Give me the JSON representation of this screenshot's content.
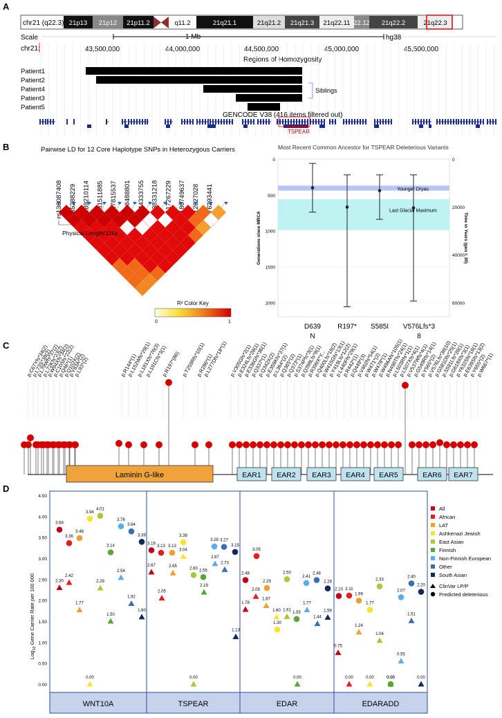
{
  "panel_a": {
    "letter": "A",
    "chrom_label": "chr21 (q22.3)",
    "bands": [
      "21p13",
      "21p12",
      "21p11.2",
      "q11.2",
      "21q21.1",
      "21q21.2",
      "21q21.3",
      "21q22.11",
      "22.12",
      "21q22.2",
      "21q22.3"
    ],
    "scale_label": "Scale",
    "scale_value": "1 Mb",
    "assembly": "hg38",
    "chr_label": "chr21:",
    "positions": [
      "43,500,000",
      "44,000,000",
      "44,500,000",
      "45,000,000",
      "45,500,000"
    ],
    "roh_title": "Regions of Homozygosity",
    "patients": [
      "Patient1",
      "Patient2",
      "Patient4",
      "Patient3",
      "Patient5"
    ],
    "siblings_label": "Siblings",
    "gencode_label": "GENCODE V38 (416 items filtered out)",
    "tspear_label": "TSPEAR"
  },
  "panel_b": {
    "letter": "B",
    "ld_title": "Pairwise LD for 12 Core Haplotype SNPs in Heterozygous Carriers",
    "snps": [
      "rs136087408",
      "rs35288229",
      "rs189210114",
      "rs531511885",
      "rs117815537",
      "rs138488801",
      "rs144333755",
      "rs138331218",
      "rs117267229",
      "rs186749637",
      "rs12627028",
      "rs76293441"
    ],
    "physical_length": "Physical Length:11kb",
    "color_key_title": "R² Color Key",
    "color_key_min": "0",
    "color_key_max": "1",
    "mrca_title": "Most Recent Common Ancestor for TSPEAR Deleterious Variants",
    "ylabel_left": "Generations since MRCA",
    "ylabel_right": "Time in Years (gen = 30)",
    "left_ticks": [
      "0",
      "500",
      "1000",
      "1500",
      "2000"
    ],
    "right_ticks": [
      "0",
      "20000",
      "40000",
      "60000"
    ],
    "younger_dryas": "Younger Dryas",
    "lgm": "Last Glacial Maximum",
    "variant_labels": [
      [
        "D639",
        "N"
      ],
      [
        "R197*"
      ],
      [
        "S585I"
      ],
      [
        "V576Lfs*3",
        "8"
      ]
    ]
  },
  "panel_c": {
    "letter": "C",
    "variants_left": [
      "p.C67Yfs*34(2)",
      "p.L73S*38(2)",
      "p.L79Wfs*37(2)",
      "p.L72Kfs*23(2)",
      "p.W94Xfs*34(2)",
      "p.C10Sfs*22(2)",
      "p.Q46*(1)",
      "p.Q102X(2)",
      "p.Y83A*(2)",
      "p.L93*(2)"
    ],
    "variants_mid": [
      "p.R144*(1)",
      "p.L152Wfs*29(1)",
      "p.L181Xfs*76(3)",
      "p.L191Cfs*3(1)",
      "p.R197*(86)",
      "p.T259Rfs*10(1)",
      "p.R286*(1)",
      "p.L277Dfs*18*(1)"
    ],
    "variants_right": [
      "p.V305Gfs*2(1)",
      "p.E324Lfs*28(1)",
      "p.E336Gfs*36(1)",
      "p.Q337*(1)",
      "p.Q342X(2)",
      "p.E359Kfs*37(1)",
      "p.L364*(2)",
      "p.Q365*(2)",
      "p.Q373*(1)",
      "p.S374Pfs*3(1)",
      "p.Q398Lfs*8(1)",
      "p.R399X*Y...",
      "p.Q400Lfs*18(2)",
      "p.W415Gfs*13(1)",
      "p.Y419Lfs*12(2)",
      "p.L440Ffs*29(1)",
      "p.R442*(1)",
      "p.Q449*(3)",
      "p.V462fs*54(1)",
      "p.W471*(2)",
      "p.W478*(1)",
      "p.W496Afs*105(1)",
      "p.N498Tfs*24(1)",
      "p.L503Rfs*1(1)",
      "p.L507Xfs*4(1)",
      "p.V537Wfs*4(1)",
      "p.G549Rfs*14(1)",
      "p.Y565*(2)",
      "p.V576Lfs*38(10)",
      "p.G581Dfs*25(1)",
      "p.S591Lfs*28(1)",
      "p.G618Xfs*3(1)",
      "p.Y632Sfs*18(1)",
      "p.E639Sfs*13(2)",
      "p.Y655*(2)",
      "p.W667*(1)"
    ],
    "domains": [
      "Laminin G-like",
      "EAR1",
      "EAR2",
      "EAR3",
      "EAR4",
      "EAR5",
      "EAR6",
      "EAR7"
    ],
    "domain_fill": "#f0a33a",
    "ear_fill": "#bfe3ee",
    "lollipop_color": "#d40000"
  },
  "panel_d": {
    "letter": "D",
    "ylabel_pre": "Log",
    "ylabel_sub": "10",
    "ylabel_post": " Gene Carrier Rate per 100 000",
    "yticks": [
      "0.00",
      "0.50",
      "1.00",
      "1.50",
      "2.00",
      "2.50",
      "3.00",
      "3.50",
      "4.00",
      "4.50"
    ],
    "genes": [
      "WNT10A",
      "TSPEAR",
      "EDAR",
      "EDARADD"
    ],
    "legend": [
      {
        "label": "All",
        "color": "#c0001a"
      },
      {
        "label": "African",
        "color": "#e61e1e"
      },
      {
        "label": "LAT",
        "color": "#f0a030"
      },
      {
        "label": "Ashkenazi Jewish",
        "color": "#f7e330"
      },
      {
        "label": "East Asian",
        "color": "#a9c93a"
      },
      {
        "label": "Finnish",
        "color": "#5aa537"
      },
      {
        "label": "Non-Finnish European",
        "color": "#5aaee8"
      },
      {
        "label": "Other",
        "color": "#3a6eb3"
      },
      {
        "label": "South Asian",
        "color": "#13295c"
      }
    ],
    "shape_legend": [
      "ClinVar LP/P",
      "Predicted deleterious"
    ]
  },
  "chart_data": [
    {
      "type": "scatter",
      "title": "Most Recent Common Ancestor for TSPEAR Deleterious Variants",
      "xlabel": "",
      "ylabel": "Generations since MRCA",
      "categories": [
        "D639N",
        "R197*",
        "S585I",
        "V576Lfs*38"
      ],
      "estimate": [
        400,
        670,
        440,
        680
      ],
      "ci_low": [
        60,
        220,
        220,
        220
      ],
      "ci_high": [
        740,
        2060,
        840,
        1980
      ],
      "ylim": [
        0,
        2200
      ],
      "y2lim": [
        0,
        66000
      ]
    },
    {
      "type": "scatter",
      "title": "Log10 Gene Carrier Rate per 100 000",
      "categories": [
        "WNT10A",
        "TSPEAR",
        "EDAR",
        "EDARADD"
      ],
      "ylim": [
        0,
        4.5
      ],
      "populations": [
        "All",
        "African",
        "LAT",
        "Ashkenazi Jewish",
        "East Asian",
        "Finnish",
        "Non-Finnish European",
        "Other",
        "South Asian"
      ],
      "predicted_deleterious": {
        "WNT10A": [
          3.68,
          3.36,
          3.48,
          3.94,
          4.01,
          3.14,
          3.76,
          3.64,
          3.39
        ],
        "TSPEAR": [
          3.19,
          3.13,
          3.13,
          3.38,
          2.6,
          2.55,
          3.28,
          3.27,
          3.15
        ],
        "EDAR": [
          2.48,
          3.05,
          2.29,
          1.3,
          2.5,
          1.55,
          2.41,
          2.48,
          2.28
        ],
        "EDARADD": [
          2.1,
          2.11,
          1.99,
          1.77,
          2.33,
          0.0,
          2.07,
          2.4,
          2.2
        ]
      },
      "clinvar_lp_p": {
        "WNT10A": [
          2.3,
          2.42,
          1.77,
          0.0,
          2.29,
          1.5,
          2.54,
          1.92,
          1.6
        ],
        "TSPEAR": [
          2.67,
          2.05,
          2.65,
          3.04,
          0.0,
          2.19,
          2.87,
          2.73,
          1.13
        ],
        "EDAR": [
          1.78,
          2.09,
          1.87,
          1.6,
          1.61,
          0.0,
          1.77,
          1.44,
          1.59
        ],
        "EDARADD": [
          0.75,
          0.0,
          1.24,
          0.0,
          1.04,
          0.0,
          0.55,
          1.51,
          0.0
        ]
      }
    }
  ]
}
